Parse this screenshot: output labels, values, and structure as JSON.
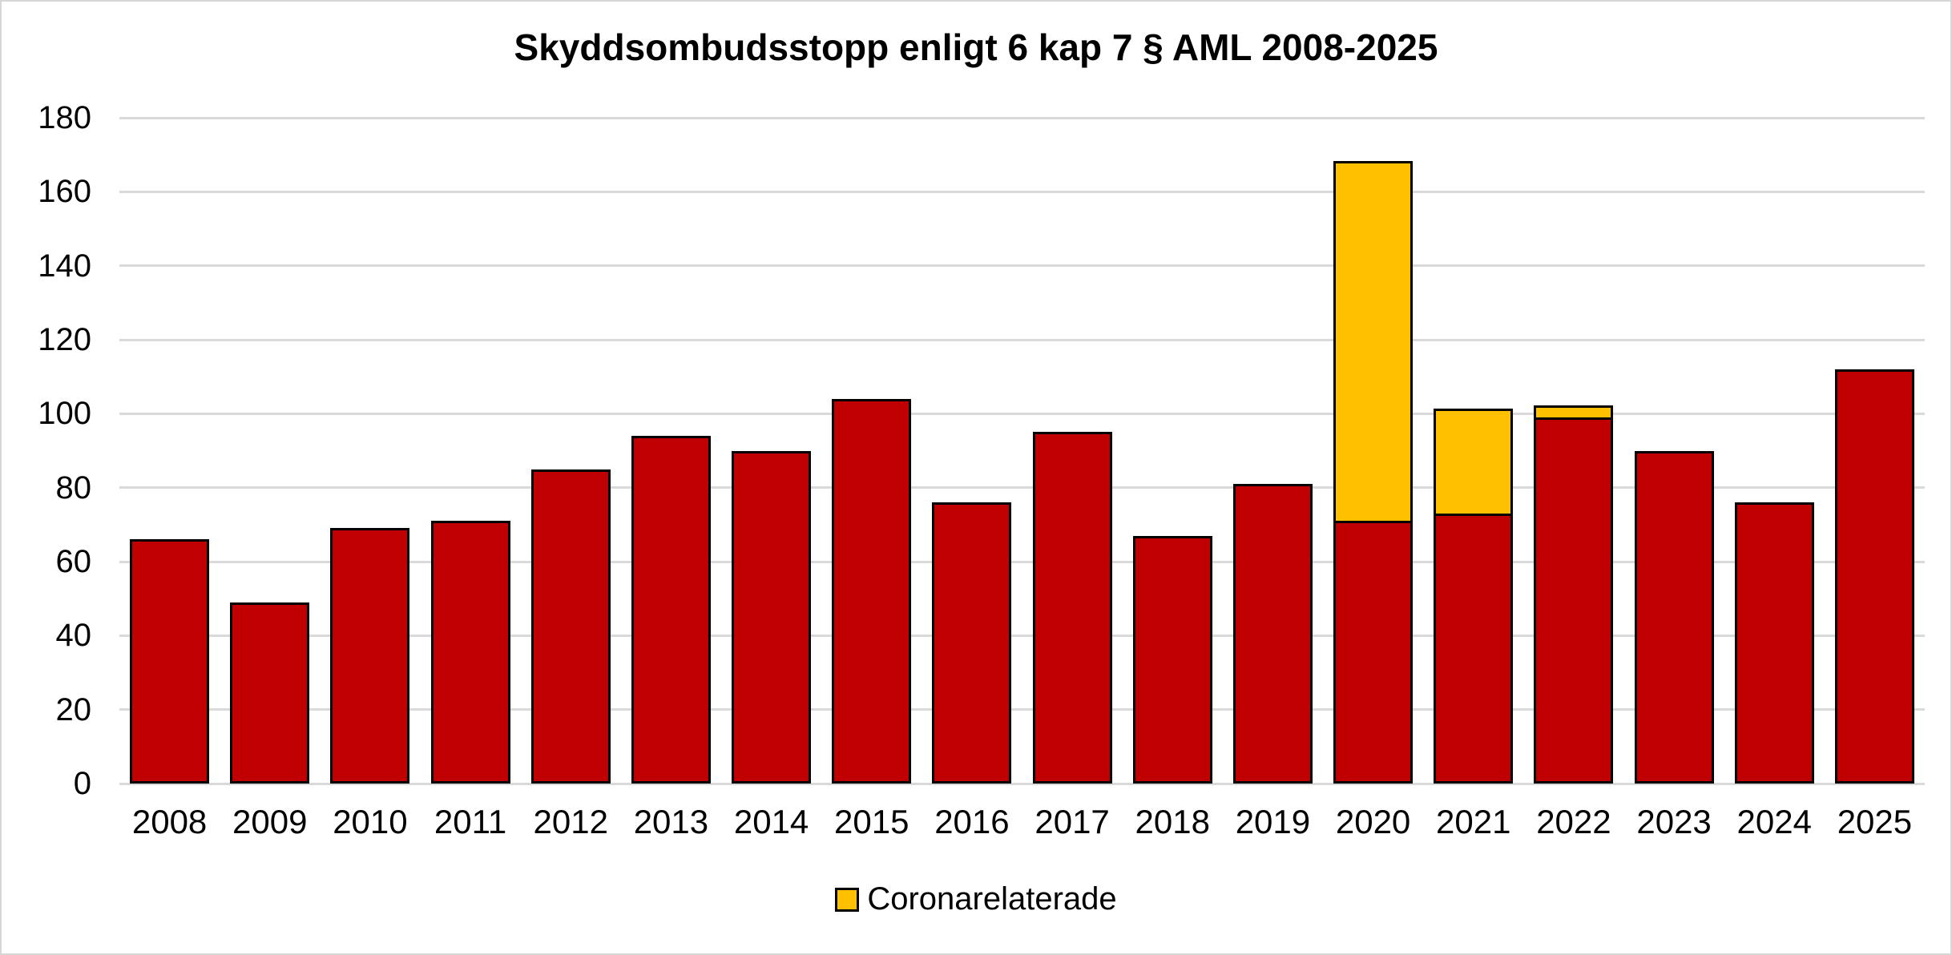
{
  "title": "Skyddsombudsstopp enligt 6 kap 7 § AML 2008-2025",
  "legend": {
    "position": "bottom-center",
    "items": [
      {
        "label": "Coronarelaterade",
        "color": "#FFC000"
      }
    ]
  },
  "colors": {
    "ordinary_bar": "#C00000",
    "corona_bar": "#FFC000",
    "bar_border": "#000000",
    "gridline": "#D9D9D9",
    "text": "#000000",
    "background": "#FFFFFF"
  },
  "y_axis": {
    "min": 0,
    "max": 180,
    "step": 20,
    "tick_labels": [
      "0",
      "20",
      "40",
      "60",
      "80",
      "100",
      "120",
      "140",
      "160",
      "180"
    ]
  },
  "chart_data": {
    "type": "bar",
    "stacked": true,
    "title": "Skyddsombudsstopp enligt 6 kap 7 § AML 2008-2025",
    "categories": [
      "2008",
      "2009",
      "2010",
      "2011",
      "2012",
      "2013",
      "2014",
      "2015",
      "2016",
      "2017",
      "2018",
      "2019",
      "2020",
      "2021",
      "2022",
      "2023",
      "2024",
      "2025"
    ],
    "series": [
      {
        "name": "Skyddsombudsstopp",
        "color": "#C00000",
        "values": [
          66,
          49,
          69,
          71,
          85,
          94,
          90,
          104,
          76,
          95,
          67,
          81,
          71,
          73,
          99,
          90,
          76,
          112
        ]
      },
      {
        "name": "Coronarelaterade",
        "color": "#FFC000",
        "values": [
          0,
          0,
          0,
          0,
          0,
          0,
          0,
          0,
          0,
          0,
          0,
          0,
          98,
          29,
          4,
          0,
          0,
          0
        ]
      }
    ],
    "totals": [
      66,
      49,
      69,
      71,
      85,
      94,
      90,
      104,
      76,
      95,
      67,
      81,
      169,
      102,
      103,
      90,
      76,
      112
    ],
    "xlabel": "",
    "ylabel": "",
    "ylim": [
      0,
      180
    ],
    "grid": true,
    "legend_position": "bottom-center"
  }
}
